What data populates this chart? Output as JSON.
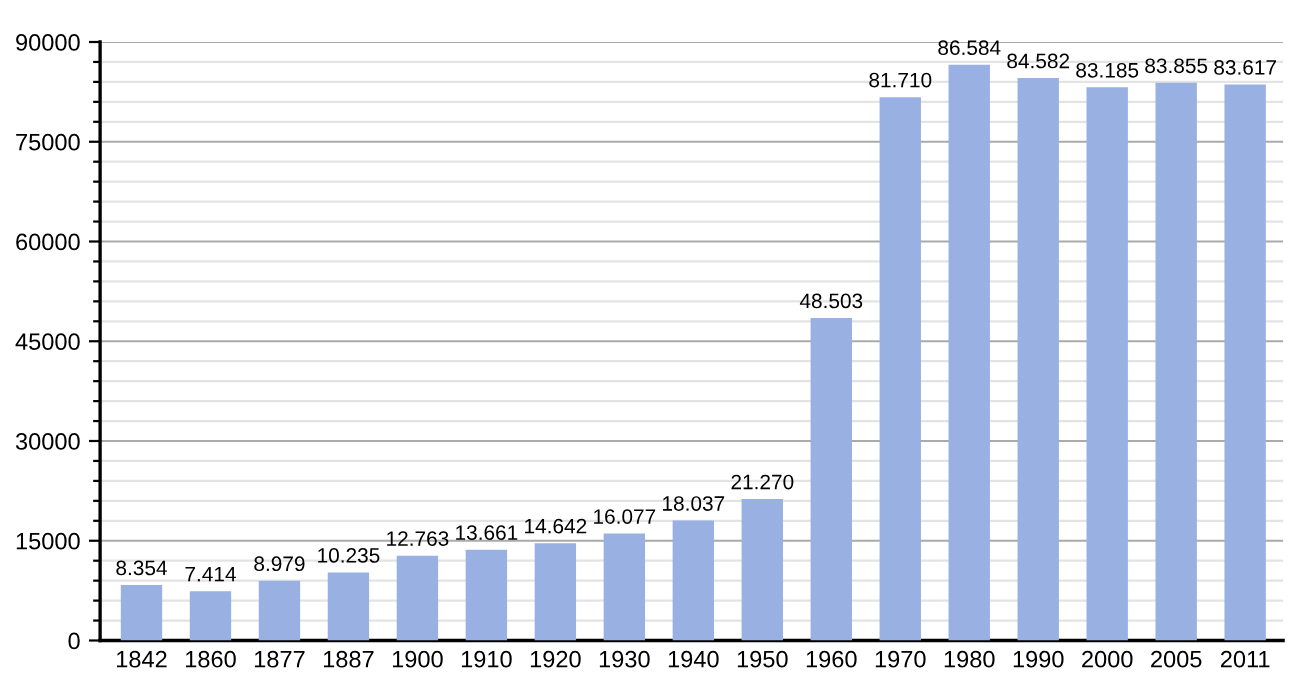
{
  "chart_data": {
    "type": "bar",
    "categories": [
      "1842",
      "1860",
      "1877",
      "1887",
      "1900",
      "1910",
      "1920",
      "1930",
      "1940",
      "1950",
      "1960",
      "1970",
      "1980",
      "1990",
      "2000",
      "2005",
      "2011"
    ],
    "values": [
      8354,
      7414,
      8979,
      10235,
      12763,
      13661,
      14642,
      16077,
      18037,
      21270,
      48503,
      81710,
      86584,
      84582,
      83185,
      83855,
      83617
    ],
    "value_labels": [
      "8.354",
      "7.414",
      "8.979",
      "10.235",
      "12.763",
      "13.661",
      "14.642",
      "16.077",
      "18.037",
      "21.270",
      "48.503",
      "81.710",
      "86.584",
      "84.582",
      "83.185",
      "83.855",
      "83.617"
    ],
    "color": "#98b1e2",
    "ylim": [
      0,
      90000
    ],
    "yticks": [
      0,
      {
        "value": 3000,
        "label": null
      },
      {
        "value": 6000,
        "label": null
      },
      {
        "value": 9000,
        "label": null
      },
      {
        "value": 12000,
        "label": null
      },
      15000,
      {
        "value": 18000,
        "label": null
      },
      {
        "value": 21000,
        "label": null
      },
      {
        "value": 24000,
        "label": null
      },
      {
        "value": 27000,
        "label": null
      },
      30000,
      {
        "value": 33000,
        "label": null
      },
      {
        "value": 36000,
        "label": null
      },
      {
        "value": 39000,
        "label": null
      },
      {
        "value": 42000,
        "label": null
      },
      45000,
      {
        "value": 48000,
        "label": null
      },
      {
        "value": 51000,
        "label": null
      },
      {
        "value": 54000,
        "label": null
      },
      {
        "value": 57000,
        "label": null
      },
      60000,
      {
        "value": 63000,
        "label": null
      },
      {
        "value": 66000,
        "label": null
      },
      {
        "value": 69000,
        "label": null
      },
      {
        "value": 72000,
        "label": null
      },
      75000,
      {
        "value": 78000,
        "label": null
      },
      {
        "value": 81000,
        "label": null
      },
      {
        "value": 84000,
        "label": null
      },
      {
        "value": 87000,
        "label": null
      },
      90000
    ],
    "grid": "y"
  }
}
